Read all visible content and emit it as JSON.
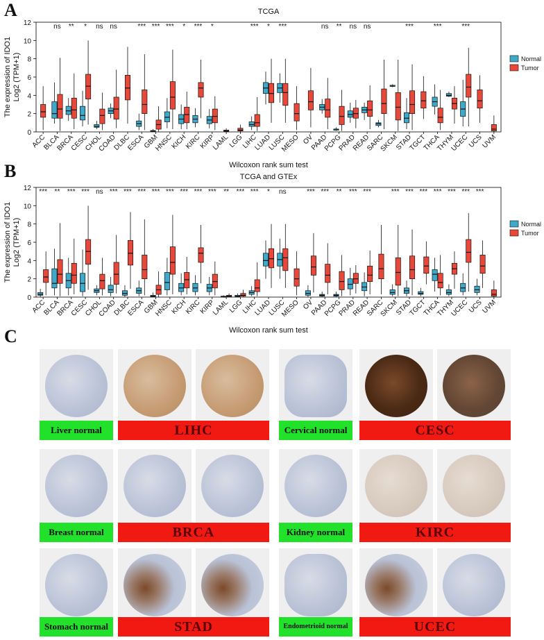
{
  "panels": {
    "a": "A",
    "b": "B",
    "c": "C"
  },
  "chart_data": [
    {
      "type": "box",
      "title": "TCGA",
      "xlabel": "Wilcoxon rank sum test",
      "ylabel_line1": "The expression of IDO1",
      "ylabel_line2": "Log2 (TPM+1)",
      "ylim": [
        0,
        12
      ],
      "yticks": [
        "0",
        "2",
        "4",
        "6",
        "8",
        "10",
        "12"
      ],
      "legend": {
        "position": "right",
        "entries": [
          "Normal",
          "Tumor"
        ]
      },
      "colors": {
        "normal": "#3fa9c9",
        "tumor": "#e8483a"
      },
      "categories": [
        "ACC",
        "BLCA",
        "BRCA",
        "CESC",
        "CHOL",
        "COAD",
        "DLBC",
        "ESCA",
        "GBM",
        "HNSC",
        "KICH",
        "KIRC",
        "KIRP",
        "LAML",
        "LGG",
        "LIHC",
        "LUAD",
        "LUSC",
        "MESO",
        "OV",
        "PAAD",
        "PCPG",
        "PRAD",
        "READ",
        "SARC",
        "SKCM",
        "STAD",
        "TGCT",
        "THCA",
        "THYM",
        "UCEC",
        "UCS",
        "UVM"
      ],
      "significance": [
        "",
        "ns",
        "**",
        "*",
        "ns",
        "ns",
        "",
        "***",
        "***",
        "***",
        "*",
        "***",
        "*",
        "",
        "",
        "***",
        "*",
        "***",
        "",
        "",
        "ns",
        "**",
        "ns",
        "ns",
        "",
        "",
        "***",
        "",
        "***",
        "",
        "***",
        "",
        ""
      ],
      "series": [
        {
          "name": "Normal",
          "values": [
            null,
            [
              0.9,
              1.5,
              2.0,
              3.3,
              5.4
            ],
            [
              1.2,
              1.9,
              2.3,
              2.8,
              3.7
            ],
            [
              0.6,
              1.3,
              1.8,
              2.8,
              4.5
            ],
            [
              0.3,
              0.5,
              0.6,
              0.8,
              1.2
            ],
            [
              1.5,
              2.0,
              2.3,
              2.6,
              3.1
            ],
            null,
            [
              0.2,
              0.6,
              0.9,
              1.2,
              2.0
            ],
            [
              0.0,
              0.05,
              0.1,
              0.15,
              0.3
            ],
            [
              0.4,
              1.1,
              1.6,
              2.2,
              3.7
            ],
            [
              0.3,
              0.9,
              1.4,
              1.9,
              3.0
            ],
            [
              0.5,
              1.0,
              1.4,
              1.8,
              2.6
            ],
            [
              0.4,
              0.9,
              1.3,
              1.7,
              2.5
            ],
            null,
            null,
            [
              0.2,
              0.6,
              0.8,
              1.1,
              1.7
            ],
            [
              3.0,
              4.2,
              4.8,
              5.4,
              6.6
            ],
            [
              3.2,
              4.3,
              4.8,
              5.3,
              6.4
            ],
            null,
            null,
            [
              2.0,
              2.4,
              2.7,
              3.0,
              3.6
            ],
            [
              0.1,
              0.2,
              0.3,
              0.3,
              0.5
            ],
            [
              1.0,
              1.6,
              1.9,
              2.3,
              3.2
            ],
            [
              1.3,
              2.1,
              2.4,
              2.7,
              3.2
            ],
            [
              0.5,
              0.7,
              0.9,
              1.0,
              1.3
            ],
            [
              4.9,
              5.0,
              5.0,
              5.1,
              5.2
            ],
            [
              0.3,
              1.0,
              1.5,
              2.1,
              3.7
            ],
            null,
            [
              1.9,
              2.8,
              3.3,
              3.8,
              5.2
            ],
            [
              3.8,
              3.9,
              4.0,
              4.2,
              4.4
            ],
            [
              0.6,
              1.7,
              2.5,
              3.3,
              5.7
            ],
            null,
            null
          ]
        },
        {
          "name": "Tumor",
          "values": [
            [
              0.2,
              1.6,
              2.2,
              3.0,
              5.0
            ],
            [
              0.1,
              1.5,
              2.5,
              4.1,
              8.1
            ],
            [
              0.3,
              1.5,
              2.4,
              3.7,
              6.4
            ],
            [
              0.8,
              3.6,
              5.0,
              6.3,
              10.0
            ],
            [
              0.2,
              0.9,
              1.8,
              2.5,
              4.3
            ],
            [
              0.4,
              1.4,
              2.5,
              3.8,
              6.8
            ],
            [
              0.9,
              3.5,
              4.8,
              6.2,
              9.3
            ],
            [
              0.2,
              2.0,
              3.0,
              4.6,
              8.5
            ],
            [
              0.0,
              0.3,
              0.8,
              1.3,
              2.8
            ],
            [
              0.3,
              2.5,
              3.8,
              5.5,
              9.0
            ],
            [
              0.3,
              1.0,
              1.9,
              2.7,
              4.4
            ],
            [
              1.5,
              3.8,
              4.8,
              5.4,
              7.9
            ],
            [
              0.2,
              1.0,
              1.7,
              2.5,
              3.9
            ],
            [
              0.0,
              0.05,
              0.1,
              0.2,
              0.4
            ],
            [
              0.0,
              0.1,
              0.2,
              0.4,
              0.8
            ],
            [
              0.1,
              0.6,
              1.0,
              1.9,
              3.8
            ],
            [
              1.0,
              3.2,
              4.2,
              5.3,
              8.0
            ],
            [
              1.0,
              2.9,
              4.3,
              5.3,
              8.0
            ],
            [
              0.2,
              1.2,
              2.0,
              3.1,
              5.0
            ],
            [
              0.5,
              2.4,
              3.3,
              4.5,
              7.0
            ],
            [
              0.3,
              1.6,
              2.4,
              3.6,
              5.9
            ],
            [
              0.1,
              0.8,
              1.7,
              2.8,
              4.6
            ],
            [
              0.4,
              1.5,
              2.0,
              2.6,
              3.5
            ],
            [
              0.3,
              1.7,
              2.4,
              3.4,
              5.1
            ],
            [
              0.3,
              2.0,
              3.1,
              4.7,
              7.9
            ],
            [
              0.1,
              1.3,
              2.7,
              4.3,
              7.9
            ],
            [
              0.2,
              2.0,
              3.0,
              4.5,
              7.4
            ],
            [
              1.4,
              2.6,
              3.4,
              4.4,
              6.1
            ],
            [
              0.2,
              1.0,
              1.6,
              2.6,
              4.6
            ],
            [
              0.9,
              2.5,
              3.1,
              3.7,
              5.0
            ],
            [
              0.6,
              3.8,
              4.9,
              6.3,
              9.2
            ],
            [
              1.0,
              2.6,
              3.4,
              4.6,
              6.2
            ],
            [
              0.0,
              0.1,
              0.3,
              0.8,
              1.8
            ]
          ]
        }
      ]
    },
    {
      "type": "box",
      "title": "TCGA and GTEx",
      "xlabel": "Wilcoxon rank sum test",
      "ylabel_line1": "The expression of IDO1",
      "ylabel_line2": "Log2 (TPM+1)",
      "ylim": [
        0,
        12
      ],
      "yticks": [
        "0",
        "2",
        "4",
        "6",
        "8",
        "10",
        "12"
      ],
      "legend": {
        "position": "right",
        "entries": [
          "Normal",
          "Tumor"
        ]
      },
      "colors": {
        "normal": "#3fa9c9",
        "tumor": "#e8483a"
      },
      "categories": [
        "ACC",
        "BLCA",
        "BRCA",
        "CESC",
        "CHOL",
        "COAD",
        "DLBC",
        "ESCA",
        "GBM",
        "HNSC",
        "KICH",
        "KIRC",
        "KIRP",
        "LAML",
        "LGG",
        "LIHC",
        "LUAD",
        "LUSC",
        "MESO",
        "OV",
        "PAAD",
        "PCPG",
        "PRAD",
        "READ",
        "SARC",
        "SKCM",
        "STAD",
        "TGCT",
        "THCA",
        "THYM",
        "UCEC",
        "UCS",
        "UVM"
      ],
      "significance": [
        "***",
        "**",
        "***",
        "***",
        "ns",
        "***",
        "***",
        "***",
        "***",
        "***",
        "***",
        "***",
        "***",
        "**",
        "***",
        "***",
        "*",
        "ns",
        "",
        "***",
        "***",
        "**",
        "***",
        "***",
        "",
        "***",
        "***",
        "***",
        "***",
        "***",
        "***",
        "***",
        ""
      ],
      "series": [
        {
          "name": "Normal",
          "values": [
            [
              0.0,
              0.2,
              0.3,
              0.5,
              0.9
            ],
            [
              0.2,
              1.0,
              1.5,
              3.1,
              5.3
            ],
            [
              0.2,
              1.0,
              1.8,
              2.6,
              4.3
            ],
            [
              0.1,
              0.6,
              1.5,
              2.6,
              5.2
            ],
            [
              0.2,
              0.5,
              0.7,
              0.9,
              1.3
            ],
            [
              0.1,
              0.5,
              0.8,
              1.3,
              2.2
            ],
            [
              0.0,
              0.2,
              0.4,
              0.7,
              1.3
            ],
            [
              0.1,
              0.4,
              0.7,
              1.0,
              1.8
            ],
            [
              0.0,
              0.05,
              0.1,
              0.2,
              0.5
            ],
            [
              0.2,
              0.8,
              1.6,
              2.7,
              4.3
            ],
            [
              0.2,
              0.6,
              1.0,
              1.5,
              2.6
            ],
            [
              0.2,
              0.6,
              1.0,
              1.5,
              2.4
            ],
            [
              0.2,
              0.6,
              1.0,
              1.4,
              2.2
            ],
            [
              0.0,
              0.02,
              0.05,
              0.1,
              0.2
            ],
            [
              0.0,
              0.05,
              0.1,
              0.2,
              0.4
            ],
            [
              0.1,
              0.3,
              0.5,
              0.7,
              1.2
            ],
            [
              2.0,
              3.4,
              4.0,
              4.8,
              6.2
            ],
            [
              2.0,
              3.4,
              4.1,
              4.8,
              6.4
            ],
            null,
            [
              0.0,
              0.2,
              0.4,
              0.7,
              1.3
            ],
            [
              0.0,
              0.1,
              0.2,
              0.3,
              0.6
            ],
            [
              0.0,
              0.1,
              0.2,
              0.3,
              0.6
            ],
            [
              0.2,
              0.9,
              1.4,
              2.0,
              3.2
            ],
            [
              0.1,
              0.7,
              1.1,
              1.6,
              2.7
            ],
            null,
            [
              0.1,
              0.3,
              0.5,
              0.8,
              1.4
            ],
            [
              0.1,
              0.4,
              0.7,
              1.0,
              1.8
            ],
            [
              0.1,
              0.3,
              0.4,
              0.6,
              1.0
            ],
            [
              0.6,
              1.8,
              2.5,
              3.0,
              4.3
            ],
            [
              0.1,
              0.3,
              0.5,
              0.8,
              1.4
            ],
            [
              0.2,
              0.6,
              1.0,
              1.5,
              2.6
            ],
            [
              0.2,
              0.5,
              0.8,
              1.2,
              2.0
            ],
            null
          ]
        },
        {
          "name": "Tumor",
          "values": [
            [
              0.2,
              1.6,
              2.2,
              3.0,
              5.0
            ],
            [
              0.1,
              1.5,
              2.5,
              4.1,
              8.1
            ],
            [
              0.3,
              1.5,
              2.4,
              3.7,
              6.4
            ],
            [
              0.8,
              3.6,
              5.0,
              6.3,
              10.0
            ],
            [
              0.2,
              0.9,
              1.8,
              2.5,
              4.3
            ],
            [
              0.4,
              1.4,
              2.5,
              3.8,
              6.8
            ],
            [
              0.9,
              3.5,
              4.8,
              6.2,
              9.3
            ],
            [
              0.2,
              2.0,
              3.0,
              4.6,
              8.5
            ],
            [
              0.0,
              0.3,
              0.8,
              1.3,
              2.8
            ],
            [
              0.3,
              2.5,
              3.8,
              5.5,
              9.0
            ],
            [
              0.3,
              1.0,
              1.9,
              2.7,
              4.4
            ],
            [
              1.5,
              3.8,
              4.8,
              5.4,
              7.9
            ],
            [
              0.2,
              1.0,
              1.7,
              2.5,
              3.9
            ],
            [
              0.0,
              0.05,
              0.1,
              0.2,
              0.4
            ],
            [
              0.0,
              0.1,
              0.2,
              0.4,
              0.8
            ],
            [
              0.1,
              0.6,
              1.0,
              1.9,
              3.8
            ],
            [
              1.0,
              3.2,
              4.2,
              5.3,
              8.0
            ],
            [
              1.0,
              2.9,
              4.3,
              5.3,
              8.0
            ],
            [
              0.2,
              1.2,
              2.0,
              3.1,
              5.0
            ],
            [
              0.5,
              2.4,
              3.3,
              4.5,
              7.0
            ],
            [
              0.3,
              1.6,
              2.4,
              3.6,
              5.9
            ],
            [
              0.1,
              0.8,
              1.7,
              2.8,
              4.6
            ],
            [
              0.4,
              1.5,
              2.0,
              2.6,
              3.5
            ],
            [
              0.3,
              1.7,
              2.4,
              3.4,
              5.1
            ],
            [
              0.3,
              2.0,
              3.1,
              4.7,
              7.9
            ],
            [
              0.1,
              1.3,
              2.7,
              4.3,
              7.9
            ],
            [
              0.2,
              2.0,
              3.0,
              4.5,
              7.4
            ],
            [
              1.4,
              2.6,
              3.4,
              4.4,
              6.1
            ],
            [
              0.2,
              1.0,
              1.6,
              2.6,
              4.6
            ],
            [
              0.9,
              2.5,
              3.1,
              3.7,
              5.0
            ],
            [
              0.6,
              3.8,
              4.9,
              6.3,
              9.2
            ],
            [
              1.0,
              2.6,
              3.4,
              4.6,
              6.2
            ],
            [
              0.0,
              0.1,
              0.3,
              0.8,
              1.8
            ]
          ]
        }
      ]
    }
  ],
  "ihc": {
    "labels": {
      "liver_normal": "Liver normal",
      "lihc": "LIHC",
      "cervical_normal": "Cervical normal",
      "cesc": "CESC",
      "breast_normal": "Breast normal",
      "brca": "BRCA",
      "kidney_normal": "Kidney normal",
      "kirc": "KIRC",
      "stomach_normal": "Stomach normal",
      "stad": "STAD",
      "endometrioid_normal": "Endometrioid normal",
      "ucec": "UCEC"
    }
  }
}
